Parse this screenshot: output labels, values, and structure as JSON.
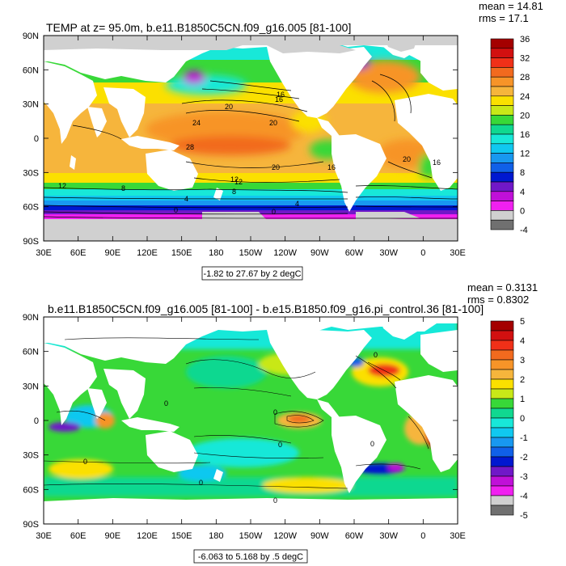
{
  "panels": [
    {
      "title": "TEMP at z=  95.0m, b.e11.B1850C5CN.f09_g16.005 [81-100]",
      "stats": {
        "mean": "mean = 14.81",
        "rms": "rms = 17.1"
      },
      "range_label": "-1.82 to 27.67 by 2 degC",
      "x_ticks": [
        "30E",
        "60E",
        "90E",
        "120E",
        "150E",
        "180",
        "150W",
        "120W",
        "90W",
        "60W",
        "30W",
        "0",
        "30E"
      ],
      "y_ticks": [
        "90N",
        "60N",
        "30N",
        "0",
        "30S",
        "60S",
        "90S"
      ],
      "colorbar": {
        "labels": [
          "36",
          "32",
          "28",
          "24",
          "20",
          "16",
          "12",
          "8",
          "4",
          "0",
          "-4"
        ],
        "colors": [
          "#a40000",
          "#d21010",
          "#f03018",
          "#f26a1e",
          "#f79428",
          "#f6b53c",
          "#fbe000",
          "#c8e818",
          "#38d838",
          "#10d890",
          "#18e8d8",
          "#10c8f0",
          "#1898f0",
          "#1060e8",
          "#0018d0",
          "#7018c8",
          "#c010d8",
          "#f020f0",
          "#d0d0d0",
          "#707070"
        ]
      },
      "contour_labels": [
        "20",
        "24",
        "16",
        "20",
        "28",
        "20",
        "16",
        "12",
        "12",
        "8",
        "4",
        "0",
        "8",
        "4",
        "0",
        "16",
        "20",
        "16",
        "12"
      ],
      "chart_data": {
        "type": "heatmap",
        "title": "TEMP at z=  95.0m, b.e11.B1850C5CN.f09_g16.005 [81-100]",
        "variable": "TEMP",
        "units": "degC",
        "min": -1.82,
        "max": 27.67,
        "contour_interval": 2,
        "mean": 14.81,
        "rms": 17.1,
        "xlim": [
          "30E",
          "30E"
        ],
        "ylim": [
          "90S",
          "90N"
        ],
        "colorbar_levels": [
          -4,
          0,
          4,
          8,
          12,
          16,
          20,
          24,
          28,
          32,
          36
        ],
        "zonal_profile_approx": {
          "lat": [
            -70,
            -60,
            -50,
            -40,
            -30,
            -15,
            0,
            15,
            30,
            45,
            60,
            75
          ],
          "value": [
            -1,
            0,
            4,
            10,
            16,
            22,
            24,
            24,
            20,
            14,
            6,
            0
          ]
        }
      }
    },
    {
      "title": "b.e11.B1850C5CN.f09_g16.005 [81-100] - b.e15.B1850.f09_g16.pi_control.36 [81-100]",
      "stats": {
        "mean": "mean = 0.3131",
        "rms": "rms = 0.8302"
      },
      "range_label": "-6.063 to 5.168 by .5 degC",
      "x_ticks": [
        "30E",
        "60E",
        "90E",
        "120E",
        "150E",
        "180",
        "150W",
        "120W",
        "90W",
        "60W",
        "30W",
        "0",
        "30E"
      ],
      "y_ticks": [
        "90N",
        "60N",
        "30N",
        "0",
        "30S",
        "60S",
        "90S"
      ],
      "colorbar": {
        "labels": [
          "5",
          "4",
          "3",
          "2",
          "1",
          "0",
          "-1",
          "-2",
          "-3",
          "-4",
          "-5"
        ],
        "colors": [
          "#a40000",
          "#d21010",
          "#f03018",
          "#f26a1e",
          "#f79428",
          "#f6b53c",
          "#fbe000",
          "#c8e818",
          "#38d838",
          "#10d890",
          "#18e8d8",
          "#10c8f0",
          "#1898f0",
          "#1060e8",
          "#0018d0",
          "#7018c8",
          "#c010d8",
          "#f020f0",
          "#d0d0d0",
          "#707070"
        ]
      },
      "contour_labels": [
        "0",
        "0",
        "0",
        "0",
        "0",
        "0",
        "0",
        "0"
      ],
      "chart_data": {
        "type": "heatmap",
        "title": "b.e11.B1850C5CN.f09_g16.005 [81-100] - b.e15.B1850.f09_g16.pi_control.36 [81-100]",
        "variable": "TEMP difference",
        "units": "degC",
        "min": -6.063,
        "max": 5.168,
        "contour_interval": 0.5,
        "mean": 0.3131,
        "rms": 0.8302,
        "xlim": [
          "30E",
          "30E"
        ],
        "ylim": [
          "90S",
          "90N"
        ],
        "colorbar_levels": [
          -5,
          -4,
          -3,
          -2,
          -1,
          0,
          1,
          2,
          3,
          4,
          5
        ]
      }
    }
  ]
}
